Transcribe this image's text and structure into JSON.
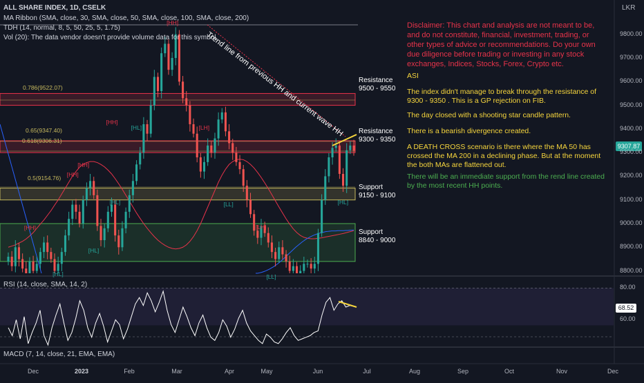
{
  "legend": {
    "title": "ALL SHARE INDEX, 1D, CSELK",
    "ma_ribbon": "MA Ribbon (SMA, close, 30, SMA, close, 50, SMA, close, 100, SMA, close, 200)",
    "tdh": "TDH (14, normal, 8, 5, 50, 25, 5, 1.75)",
    "vol": "Vol (20): The data vendor doesn't provide volume data for this symbol."
  },
  "currency": "LKR",
  "last_price_label": "9307.87",
  "colors": {
    "background": "#131722",
    "up": "#26a69a",
    "down": "#ef5350",
    "resistance_zone": "#e8334a",
    "support_zone": "#c7b95e",
    "ma_red": "#e8334a",
    "ma_blue": "#2962ff",
    "trend_line": "#e8334a",
    "divergence": "#f7d63d",
    "rsi_line": "#ffffff",
    "annotation_yellow": "#f7d63d",
    "annotation_green": "#4caf50"
  },
  "annotations": {
    "disclaimer": "Disclaimer: This chart and analysis are not meant to be, and do not constitute, financial, investment, trading, or other types of advice or recommendations. Do your own due diligence before trading or investing in any stock exchanges, Indices, Stocks, Forex, Crypto etc.",
    "asi": "ASI",
    "p1": "The index didn't manage to break through the resistance of 9300 - 9350 . This is a GP rejection on  FIB.",
    "p2": "The day closed with a shooting star candle pattern.",
    "p3": "There is a bearish divergence created.",
    "p4": "A DEATH CROSS scenario is there where the MA 50 has crossed the MA 200 in a declining phase. But at the moment the both MAs are flattened out.",
    "p5": "There will be an immediate support from the rend line created by the most recent HH points.",
    "trend_line_label": "Trend line from previous HH and current wave HH"
  },
  "zones": [
    {
      "name": "Resistance",
      "range": "9500 - 9550",
      "low": 9500,
      "high": 9550,
      "kind": "resistance"
    },
    {
      "name": "Resistance",
      "range": "9300 - 9350",
      "low": 9300,
      "high": 9350,
      "kind": "resistance"
    },
    {
      "name": "Support",
      "range": "9150 - 9100",
      "low": 9100,
      "high": 9150,
      "kind": "support"
    },
    {
      "name": "Support",
      "range": "8840 - 9000",
      "low": 8840,
      "high": 9000,
      "kind": "support"
    }
  ],
  "fib_levels": [
    {
      "label": "0.786(9522.07)",
      "value": 9522.07
    },
    {
      "label": "0.65(9347.40)",
      "value": 9347.4
    },
    {
      "label": "0.618(9306.31)",
      "value": 9306.31
    },
    {
      "label": "0.5(9154.76)",
      "value": 9154.76
    }
  ],
  "chart_data": {
    "type": "candlestick",
    "title": "ALL SHARE INDEX, 1D, CSELK",
    "ylim": [
      8790,
      9840
    ],
    "y_ticks": [
      "9800.00",
      "9700.00",
      "9600.00",
      "9500.00",
      "9400.00",
      "9300.00",
      "9200.00",
      "9100.00",
      "9000.00",
      "8900.00",
      "8800.00"
    ],
    "x_ticks": [
      "Dec",
      "2023",
      "Feb",
      "Mar",
      "Apr",
      "May",
      "Jun",
      "Jul",
      "Aug",
      "Sep",
      "Oct",
      "Nov",
      "Dec"
    ],
    "closes": [
      8860,
      8820,
      8900,
      8850,
      8810,
      8790,
      8840,
      8800,
      8830,
      8880,
      8920,
      8880,
      8850,
      8800,
      8830,
      8880,
      8950,
      9020,
      9080,
      9050,
      9000,
      9100,
      9150,
      9180,
      9120,
      8990,
      8930,
      8980,
      9050,
      9080,
      8950,
      8900,
      8980,
      9050,
      9120,
      9180,
      9250,
      9300,
      9420,
      9380,
      9500,
      9620,
      9560,
      9720,
      9760,
      9650,
      9700,
      9800,
      9600,
      9530,
      9500,
      9420,
      9380,
      9280,
      9220,
      9260,
      9330,
      9300,
      9360,
      9440,
      9470,
      9390,
      9340,
      9300,
      9260,
      9230,
      9160,
      9100,
      9040,
      8970,
      8940,
      8990,
      8960,
      8920,
      8880,
      8850,
      8900,
      8870,
      8840,
      8800,
      8820,
      8790,
      8800,
      8830,
      8830,
      8810,
      8830,
      8960,
      9100,
      9200,
      9280,
      9320,
      9330,
      9210,
      9160,
      9310,
      9330,
      9308
    ],
    "ohlc_note": "Open/high/low approximated around closes",
    "ma_red": [
      8900,
      8905,
      8910,
      8918,
      8925,
      8935,
      8948,
      8962,
      8980,
      8998,
      9015,
      9035,
      9055,
      9078,
      9100,
      9125,
      9150,
      9175,
      9200,
      9220,
      9238,
      9250,
      9258,
      9262,
      9262,
      9258,
      9250,
      9240,
      9226,
      9210,
      9190,
      9168,
      9145,
      9120,
      9095,
      9070,
      9045,
      9022,
      9000,
      8980,
      8962,
      8945,
      8930,
      8918,
      8908,
      8900,
      8895,
      8893,
      8895,
      8900,
      8910,
      8925,
      8945,
      8970,
      9000,
      9035,
      9070,
      9105,
      9140,
      9175,
      9205,
      9230,
      9250,
      9262,
      9270,
      9272,
      9270,
      9262,
      9250,
      9235,
      9216,
      9195,
      9172,
      9148,
      9122,
      9096,
      9070,
      9045,
      9020,
      8998,
      8978,
      8962,
      8950,
      8942,
      8938,
      8936,
      8936,
      8938,
      8940,
      8943,
      8946,
      8949,
      8952,
      8955,
      8958,
      8962,
      8966,
      8970
    ],
    "ma_blue": [
      8790,
      8790,
      8792,
      8794,
      8797,
      8800,
      8804,
      8808,
      8813,
      8818,
      8824,
      8830,
      8837,
      8844,
      8852,
      8860,
      8868,
      8876,
      8884,
      8892,
      8900,
      8907,
      8914,
      8921,
      8927,
      8933,
      8938,
      8943,
      8947,
      8951,
      8954,
      8957,
      8960,
      8962,
      8964,
      8966,
      8967,
      8968,
      8969,
      8969,
      8969,
      8970,
      8970,
      8970,
      8970,
      8971,
      8971,
      8972,
      8972,
      8973
    ],
    "rsi": {
      "ylim": [
        45,
        85
      ],
      "ticks": [
        "80.00",
        "60.00"
      ],
      "last_label": "68.52",
      "values": [
        55,
        50,
        60,
        48,
        62,
        45,
        52,
        58,
        66,
        50,
        44,
        55,
        63,
        70,
        58,
        47,
        52,
        61,
        72,
        66,
        55,
        49,
        58,
        64,
        56,
        46,
        53,
        60,
        57,
        48,
        54,
        62,
        70,
        74,
        69,
        77,
        72,
        65,
        71,
        78,
        66,
        57,
        52,
        60,
        68,
        62,
        55,
        50,
        58,
        63,
        55,
        49,
        47,
        52,
        60,
        56,
        49,
        54,
        61,
        66,
        58,
        53,
        50,
        47,
        45,
        51,
        49,
        46,
        45,
        48,
        52,
        55,
        50,
        47,
        48,
        49,
        50,
        52,
        53,
        63,
        71,
        74,
        66,
        70,
        72,
        68,
        69,
        68.5
      ]
    },
    "macd_label": "MACD (7, 14, close, 21, EMA, EMA)",
    "rsi_label": "RSI (14, close, SMA, 14, 2)",
    "pivot_labels": [
      {
        "text": "[HH]",
        "i": 6,
        "v": 8965
      },
      {
        "text": "[HL]",
        "i": 14,
        "v": 8810
      },
      {
        "text": "[HH]",
        "i": 18,
        "v": 9190
      },
      {
        "text": "[HH]",
        "i": 21,
        "v": 9230
      },
      {
        "text": "[HL]",
        "i": 24,
        "v": 8910
      },
      {
        "text": "[HH]",
        "i": 29,
        "v": 9410
      },
      {
        "text": "[HL]",
        "i": 30,
        "v": 9115
      },
      {
        "text": "[HL]",
        "i": 36,
        "v": 9430
      },
      {
        "text": "[HH]",
        "i": 46,
        "v": 9830
      },
      {
        "text": "[LH]",
        "i": 55,
        "v": 9430
      },
      {
        "text": "[LL]",
        "i": 62,
        "v": 9105
      },
      {
        "text": "[LH]",
        "i": 71,
        "v": 9010
      },
      {
        "text": "[LL]",
        "i": 74,
        "v": 8800
      },
      {
        "text": "[HL]",
        "i": 94,
        "v": 9115
      }
    ]
  }
}
